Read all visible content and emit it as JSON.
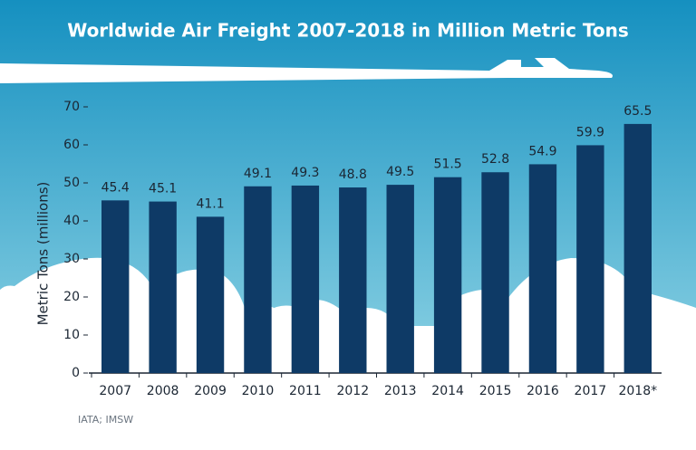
{
  "chart_data": {
    "type": "bar",
    "title": "Worldwide Air Freight 2007-2018 in Million Metric Tons",
    "ylabel": "Metric Tons (millions)",
    "categories": [
      "2007",
      "2008",
      "2009",
      "2010",
      "2011",
      "2012",
      "2013",
      "2014",
      "2015",
      "2016",
      "2017",
      "2018*"
    ],
    "values": [
      45.4,
      45.1,
      41.1,
      49.1,
      49.3,
      48.8,
      49.5,
      51.5,
      52.8,
      54.9,
      59.9,
      65.5
    ],
    "color": "#0e3a66",
    "ylim": [
      0,
      70
    ],
    "yticks": [
      0,
      10,
      20,
      30,
      40,
      50,
      60,
      70
    ],
    "source": "IATA; IMSW"
  }
}
